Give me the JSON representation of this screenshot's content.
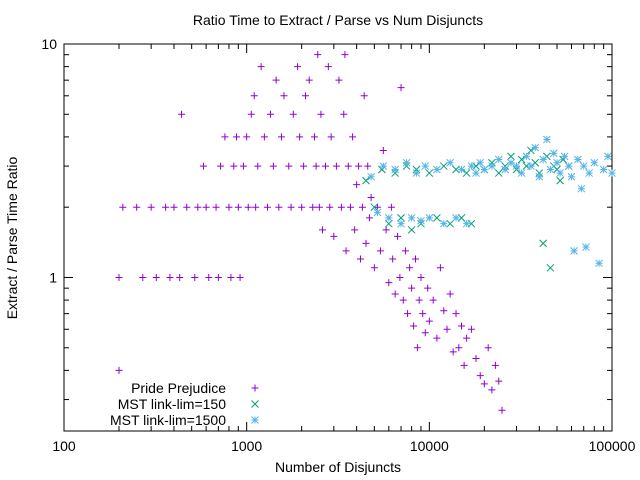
{
  "chart_data": {
    "type": "scatter",
    "title": "Ratio Time to Extract / Parse vs Num Disjuncts",
    "xlabel": "Number of Disjuncts",
    "ylabel": "Extract / Parse Time Ratio",
    "xscale": "log",
    "yscale": "log",
    "xlim": [
      100,
      100000
    ],
    "ylim": [
      0.22,
      10
    ],
    "x_ticks": [
      100,
      1000,
      10000,
      100000
    ],
    "x_tick_labels": [
      "100",
      "1000",
      "10000",
      "100000"
    ],
    "y_ticks": [
      1,
      10
    ],
    "y_tick_labels": [
      "1",
      "10"
    ],
    "grid": false,
    "legend_position": "bottom-left",
    "series": [
      {
        "name": "Pride Prejudice",
        "color": "#9400d3",
        "marker": "plus",
        "points": [
          [
            200,
            0.4
          ],
          [
            200,
            1
          ],
          [
            210,
            2
          ],
          [
            250,
            2
          ],
          [
            270,
            1
          ],
          [
            300,
            2
          ],
          [
            320,
            1
          ],
          [
            360,
            2
          ],
          [
            380,
            1
          ],
          [
            400,
            2
          ],
          [
            430,
            1
          ],
          [
            440,
            5
          ],
          [
            470,
            2
          ],
          [
            520,
            1
          ],
          [
            540,
            2
          ],
          [
            580,
            3
          ],
          [
            600,
            2
          ],
          [
            620,
            1
          ],
          [
            680,
            2
          ],
          [
            700,
            1
          ],
          [
            720,
            3
          ],
          [
            760,
            4
          ],
          [
            800,
            2
          ],
          [
            820,
            1
          ],
          [
            850,
            3
          ],
          [
            880,
            4
          ],
          [
            900,
            2
          ],
          [
            920,
            1
          ],
          [
            960,
            3
          ],
          [
            1000,
            4
          ],
          [
            1020,
            2
          ],
          [
            1060,
            5
          ],
          [
            1100,
            6
          ],
          [
            1120,
            2
          ],
          [
            1150,
            3
          ],
          [
            1200,
            8
          ],
          [
            1250,
            4
          ],
          [
            1300,
            2
          ],
          [
            1350,
            5
          ],
          [
            1400,
            3
          ],
          [
            1450,
            7
          ],
          [
            1500,
            2
          ],
          [
            1550,
            4
          ],
          [
            1600,
            6
          ],
          [
            1700,
            3
          ],
          [
            1750,
            2
          ],
          [
            1800,
            5
          ],
          [
            1900,
            8
          ],
          [
            1950,
            4
          ],
          [
            2000,
            2
          ],
          [
            2050,
            3
          ],
          [
            2100,
            6
          ],
          [
            2200,
            7
          ],
          [
            2300,
            2
          ],
          [
            2350,
            4
          ],
          [
            2400,
            3
          ],
          [
            2450,
            9
          ],
          [
            2500,
            2
          ],
          [
            2550,
            5
          ],
          [
            2600,
            1.6
          ],
          [
            2700,
            3
          ],
          [
            2800,
            8
          ],
          [
            2850,
            2
          ],
          [
            2900,
            4
          ],
          [
            3000,
            1.5
          ],
          [
            3100,
            3
          ],
          [
            3200,
            7
          ],
          [
            3300,
            2
          ],
          [
            3400,
            5
          ],
          [
            3450,
            9
          ],
          [
            3500,
            1.3
          ],
          [
            3600,
            3
          ],
          [
            3700,
            2
          ],
          [
            3800,
            4
          ],
          [
            3900,
            1.6
          ],
          [
            4000,
            2.5
          ],
          [
            4100,
            3
          ],
          [
            4200,
            1.2
          ],
          [
            4300,
            2
          ],
          [
            4400,
            6
          ],
          [
            4500,
            1.4
          ],
          [
            4600,
            3
          ],
          [
            4700,
            1.8
          ],
          [
            4800,
            2.2
          ],
          [
            5000,
            1.1
          ],
          [
            5200,
            2
          ],
          [
            5400,
            1.3
          ],
          [
            5600,
            3.5
          ],
          [
            5800,
            1.6
          ],
          [
            6000,
            0.95
          ],
          [
            6200,
            2
          ],
          [
            6300,
            1.2
          ],
          [
            6500,
            0.85
          ],
          [
            6700,
            1.5
          ],
          [
            6900,
            1
          ],
          [
            7000,
            6.5
          ],
          [
            7200,
            0.8
          ],
          [
            7400,
            1.3
          ],
          [
            7600,
            0.7
          ],
          [
            7800,
            1.1
          ],
          [
            8000,
            0.9
          ],
          [
            8200,
            0.62
          ],
          [
            8400,
            1.2
          ],
          [
            8600,
            0.5
          ],
          [
            8800,
            0.8
          ],
          [
            9000,
            1
          ],
          [
            9200,
            0.7
          ],
          [
            9500,
            0.58
          ],
          [
            9800,
            0.9
          ],
          [
            10000,
            0.65
          ],
          [
            10500,
            0.8
          ],
          [
            11000,
            0.55
          ],
          [
            11500,
            1.1
          ],
          [
            12000,
            0.72
          ],
          [
            12500,
            0.6
          ],
          [
            13000,
            0.85
          ],
          [
            13500,
            0.48
          ],
          [
            14000,
            0.7
          ],
          [
            14500,
            0.5
          ],
          [
            15000,
            0.62
          ],
          [
            15500,
            0.42
          ],
          [
            16000,
            0.55
          ],
          [
            17000,
            0.6
          ],
          [
            18000,
            0.45
          ],
          [
            19000,
            0.38
          ],
          [
            20000,
            0.35
          ],
          [
            21000,
            0.5
          ],
          [
            22000,
            0.33
          ],
          [
            23000,
            0.42
          ],
          [
            24000,
            0.36
          ],
          [
            25000,
            0.27
          ]
        ]
      },
      {
        "name": "MST link-lim=150",
        "color": "#009e73",
        "marker": "cross",
        "points": [
          [
            4500,
            2.6
          ],
          [
            5000,
            2.0
          ],
          [
            5500,
            2.9
          ],
          [
            6000,
            1.7
          ],
          [
            6500,
            2.8
          ],
          [
            7000,
            1.8
          ],
          [
            7500,
            3.0
          ],
          [
            8000,
            1.6
          ],
          [
            8500,
            2.9
          ],
          [
            9000,
            1.7
          ],
          [
            10000,
            2.8
          ],
          [
            11000,
            1.8
          ],
          [
            12000,
            3.0
          ],
          [
            13000,
            1.7
          ],
          [
            14000,
            2.9
          ],
          [
            15000,
            1.8
          ],
          [
            16000,
            2.8
          ],
          [
            17000,
            1.7
          ],
          [
            18000,
            3.0
          ],
          [
            20000,
            2.9
          ],
          [
            22000,
            3.1
          ],
          [
            24000,
            2.8
          ],
          [
            26000,
            3.0
          ],
          [
            28000,
            3.3
          ],
          [
            30000,
            2.9
          ],
          [
            32000,
            3.2
          ],
          [
            34000,
            3.0
          ],
          [
            36000,
            3.5
          ],
          [
            38000,
            3.1
          ],
          [
            40000,
            2.8
          ],
          [
            42000,
            1.4
          ],
          [
            44000,
            3.3
          ],
          [
            46000,
            1.1
          ],
          [
            48000,
            3.0
          ],
          [
            50000,
            2.9
          ],
          [
            52000,
            2.6
          ],
          [
            54000,
            3.2
          ],
          [
            58000,
            3.0
          ]
        ]
      },
      {
        "name": "MST link-lim=1500",
        "color": "#56b4e9",
        "marker": "star",
        "points": [
          [
            4800,
            2.7
          ],
          [
            5200,
            1.9
          ],
          [
            5600,
            3.0
          ],
          [
            6000,
            1.8
          ],
          [
            6500,
            2.9
          ],
          [
            7000,
            1.7
          ],
          [
            7500,
            3.1
          ],
          [
            8000,
            1.8
          ],
          [
            8500,
            2.8
          ],
          [
            9000,
            1.75
          ],
          [
            9500,
            3.0
          ],
          [
            10000,
            1.8
          ],
          [
            11000,
            2.9
          ],
          [
            12000,
            1.7
          ],
          [
            13000,
            3.1
          ],
          [
            14000,
            1.8
          ],
          [
            15000,
            2.9
          ],
          [
            16000,
            1.7
          ],
          [
            17000,
            3.0
          ],
          [
            18000,
            2.8
          ],
          [
            19000,
            3.1
          ],
          [
            20000,
            2.9
          ],
          [
            22000,
            3.0
          ],
          [
            24000,
            3.2
          ],
          [
            26000,
            2.9
          ],
          [
            28000,
            3.1
          ],
          [
            30000,
            3.0
          ],
          [
            32000,
            2.8
          ],
          [
            34000,
            3.3
          ],
          [
            36000,
            3.0
          ],
          [
            38000,
            3.6
          ],
          [
            40000,
            2.7
          ],
          [
            42000,
            3.2
          ],
          [
            44000,
            3.9
          ],
          [
            46000,
            2.9
          ],
          [
            48000,
            3.4
          ],
          [
            50000,
            3.1
          ],
          [
            52000,
            2.8
          ],
          [
            55000,
            3.3
          ],
          [
            58000,
            3.0
          ],
          [
            60000,
            2.7
          ],
          [
            62000,
            1.3
          ],
          [
            65000,
            3.2
          ],
          [
            68000,
            2.4
          ],
          [
            70000,
            3.0
          ],
          [
            72000,
            1.35
          ],
          [
            75000,
            2.8
          ],
          [
            80000,
            3.1
          ],
          [
            85000,
            1.15
          ],
          [
            90000,
            2.9
          ],
          [
            95000,
            3.3
          ],
          [
            100000,
            2.8
          ]
        ]
      }
    ]
  }
}
